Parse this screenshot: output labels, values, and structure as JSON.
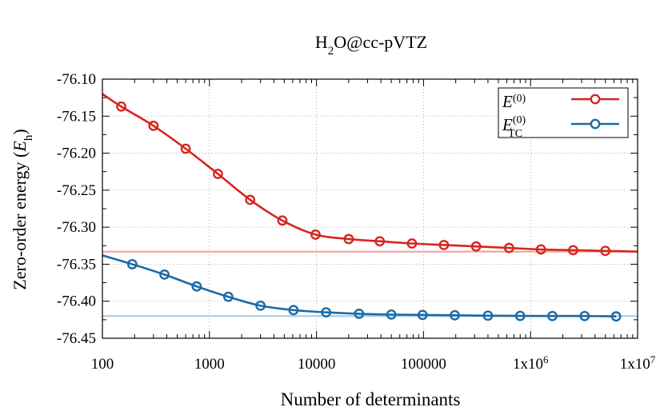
{
  "chart_data": {
    "type": "line",
    "title_main": "H",
    "title_sub": "2",
    "title_rest": "O@cc-pVTZ",
    "xlabel": "Number of determinants",
    "ylabel_text": "Zero-order energy (",
    "ylabel_var": "E",
    "ylabel_sub": "h",
    "ylabel_close": ")",
    "x_scale": "log",
    "xlim": [
      100,
      10000000
    ],
    "ylim": [
      -76.45,
      -76.1
    ],
    "grid": true,
    "legend_position": "top-right",
    "x_ticks": [
      {
        "value": 100,
        "label": "100"
      },
      {
        "value": 1000,
        "label": "1000"
      },
      {
        "value": 10000,
        "label": "10000"
      },
      {
        "value": 100000,
        "label": "100000"
      },
      {
        "value": 1000000,
        "label": "1x10",
        "sup": "6"
      },
      {
        "value": 10000000,
        "label": "1x10",
        "sup": "7"
      }
    ],
    "y_ticks": [
      {
        "value": -76.1,
        "label": "-76.10"
      },
      {
        "value": -76.15,
        "label": "-76.15"
      },
      {
        "value": -76.2,
        "label": "-76.20"
      },
      {
        "value": -76.25,
        "label": "-76.25"
      },
      {
        "value": -76.3,
        "label": "-76.30"
      },
      {
        "value": -76.35,
        "label": "-76.35"
      },
      {
        "value": -76.4,
        "label": "-76.40"
      },
      {
        "value": -76.45,
        "label": "-76.45"
      }
    ],
    "reference_lines": [
      {
        "y": -76.333,
        "color": "#f5a0a0"
      },
      {
        "y": -76.42,
        "color": "#a8cfe8"
      }
    ],
    "series": [
      {
        "legend_var": "E",
        "legend_sup": "(0)",
        "legend_sub": "",
        "color": "#d7261e",
        "curve_start": [
          100,
          -76.12
        ],
        "points": [
          [
            150,
            -76.137
          ],
          [
            300,
            -76.163
          ],
          [
            600,
            -76.194
          ],
          [
            1200,
            -76.228
          ],
          [
            2400,
            -76.263
          ],
          [
            4800,
            -76.291
          ],
          [
            9800,
            -76.31
          ],
          [
            20000,
            -76.316
          ],
          [
            39000,
            -76.319
          ],
          [
            78000,
            -76.322
          ],
          [
            155000,
            -76.324
          ],
          [
            310000,
            -76.326
          ],
          [
            630000,
            -76.328
          ],
          [
            1250000,
            -76.33
          ],
          [
            2500000,
            -76.331
          ],
          [
            5000000,
            -76.332
          ],
          [
            10000000,
            -76.333
          ]
        ]
      },
      {
        "legend_var": "E",
        "legend_sup": "(0)",
        "legend_sub": "TC",
        "color": "#1b6aa5",
        "curve_start": [
          100,
          -76.338
        ],
        "points": [
          [
            190,
            -76.35
          ],
          [
            380,
            -76.364
          ],
          [
            760,
            -76.38
          ],
          [
            1500,
            -76.394
          ],
          [
            3000,
            -76.406
          ],
          [
            6100,
            -76.412
          ],
          [
            12300,
            -76.415
          ],
          [
            25000,
            -76.417
          ],
          [
            50000,
            -76.418
          ],
          [
            98000,
            -76.4185
          ],
          [
            196000,
            -76.419
          ],
          [
            400000,
            -76.4195
          ],
          [
            800000,
            -76.4198
          ],
          [
            1600000,
            -76.42
          ],
          [
            3200000,
            -76.42
          ],
          [
            6300000,
            -76.4205
          ]
        ]
      }
    ]
  }
}
